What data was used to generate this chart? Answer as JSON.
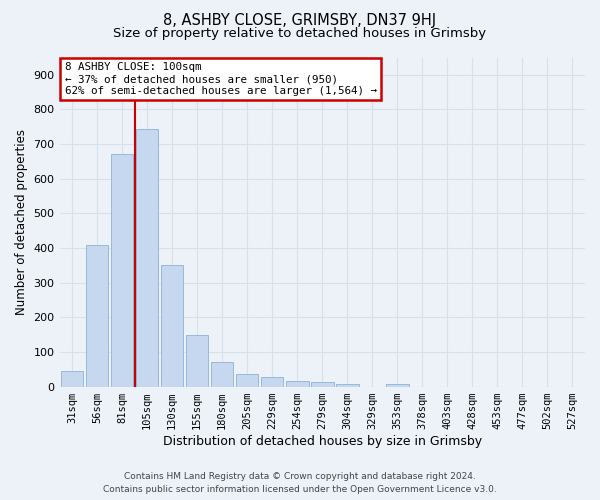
{
  "title": "8, ASHBY CLOSE, GRIMSBY, DN37 9HJ",
  "subtitle": "Size of property relative to detached houses in Grimsby",
  "xlabel": "Distribution of detached houses by size in Grimsby",
  "ylabel": "Number of detached properties",
  "footer_line1": "Contains HM Land Registry data © Crown copyright and database right 2024.",
  "footer_line2": "Contains public sector information licensed under the Open Government Licence v3.0.",
  "categories": [
    "31sqm",
    "56sqm",
    "81sqm",
    "105sqm",
    "130sqm",
    "155sqm",
    "180sqm",
    "205sqm",
    "229sqm",
    "254sqm",
    "279sqm",
    "304sqm",
    "329sqm",
    "353sqm",
    "378sqm",
    "403sqm",
    "428sqm",
    "453sqm",
    "477sqm",
    "502sqm",
    "527sqm"
  ],
  "values": [
    45,
    410,
    670,
    745,
    350,
    148,
    70,
    35,
    27,
    17,
    12,
    8,
    0,
    8,
    0,
    0,
    0,
    0,
    0,
    0,
    0
  ],
  "bar_color": "#c5d8ef",
  "bar_edge_color": "#8ab4d8",
  "red_line_x": 2.5,
  "ylim": [
    0,
    950
  ],
  "yticks": [
    0,
    100,
    200,
    300,
    400,
    500,
    600,
    700,
    800,
    900
  ],
  "annotation_line1": "8 ASHBY CLOSE: 100sqm",
  "annotation_line2": "← 37% of detached houses are smaller (950)",
  "annotation_line3": "62% of semi-detached houses are larger (1,564) →",
  "annotation_box_color": "#ffffff",
  "annotation_box_edge": "#cc0000",
  "bg_color": "#edf1f8",
  "grid_color": "#d8e0ec",
  "title_fontsize": 10.5,
  "subtitle_fontsize": 9.5,
  "bar_width": 0.9,
  "red_line_color": "#cc0000"
}
